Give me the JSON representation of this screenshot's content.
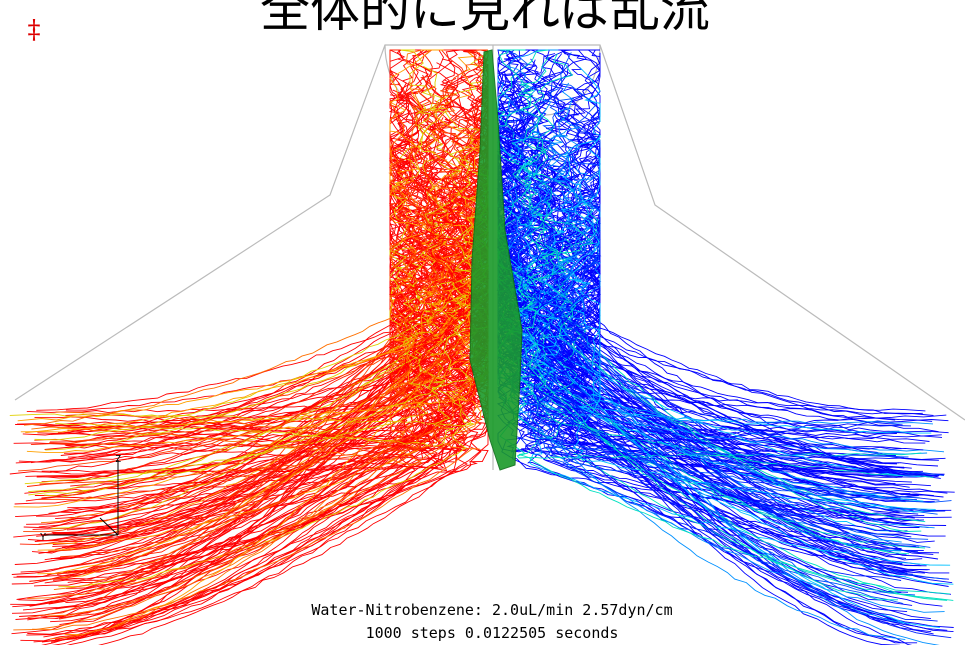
{
  "slide": {
    "title": "全体的に見れば乱流",
    "marker": "‡",
    "caption": [
      "Water-Nitrobenzene: 2.0uL/min 2.57dyn/cm",
      "1000 steps 0.0122505 seconds"
    ],
    "axes": [
      "Z",
      "Y"
    ]
  }
}
